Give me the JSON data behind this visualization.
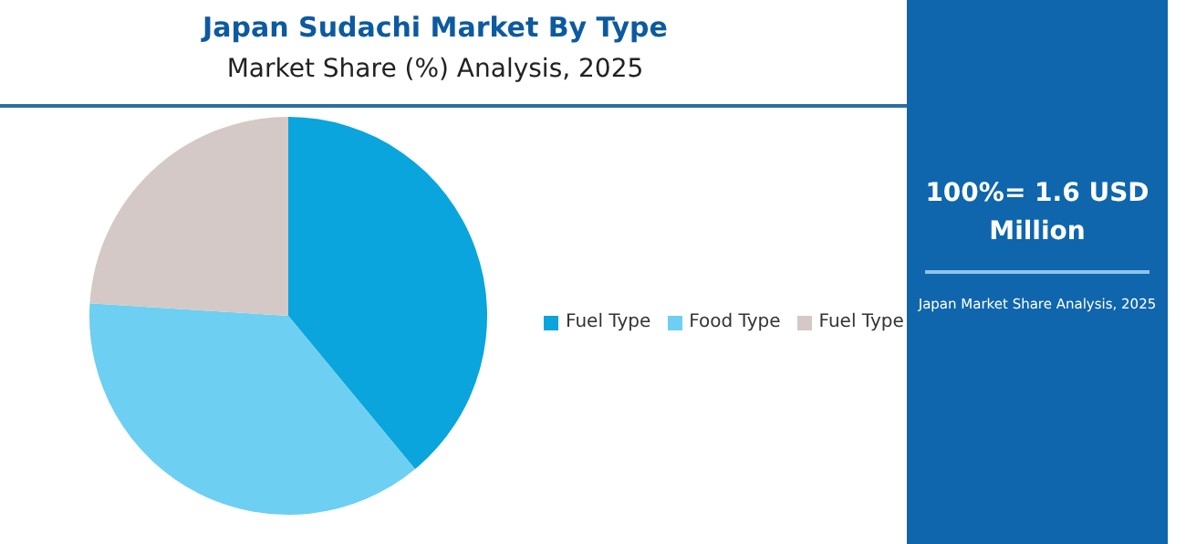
{
  "chart_data": {
    "type": "pie",
    "title": "Japan Sudachi Market By Type",
    "subtitle": "Market Share (%) Analysis, 2025",
    "categories": [
      "Fuel Type",
      "Food Type",
      "Fuel Type"
    ],
    "values": [
      39,
      37,
      24
    ],
    "colors": [
      "#0aa5dc",
      "#6dcff1",
      "#d4c9c6"
    ],
    "legend": "right",
    "annotations": [
      "100%= 1.6 USD Million",
      "Japan Market Share Analysis, 2025"
    ]
  }
}
